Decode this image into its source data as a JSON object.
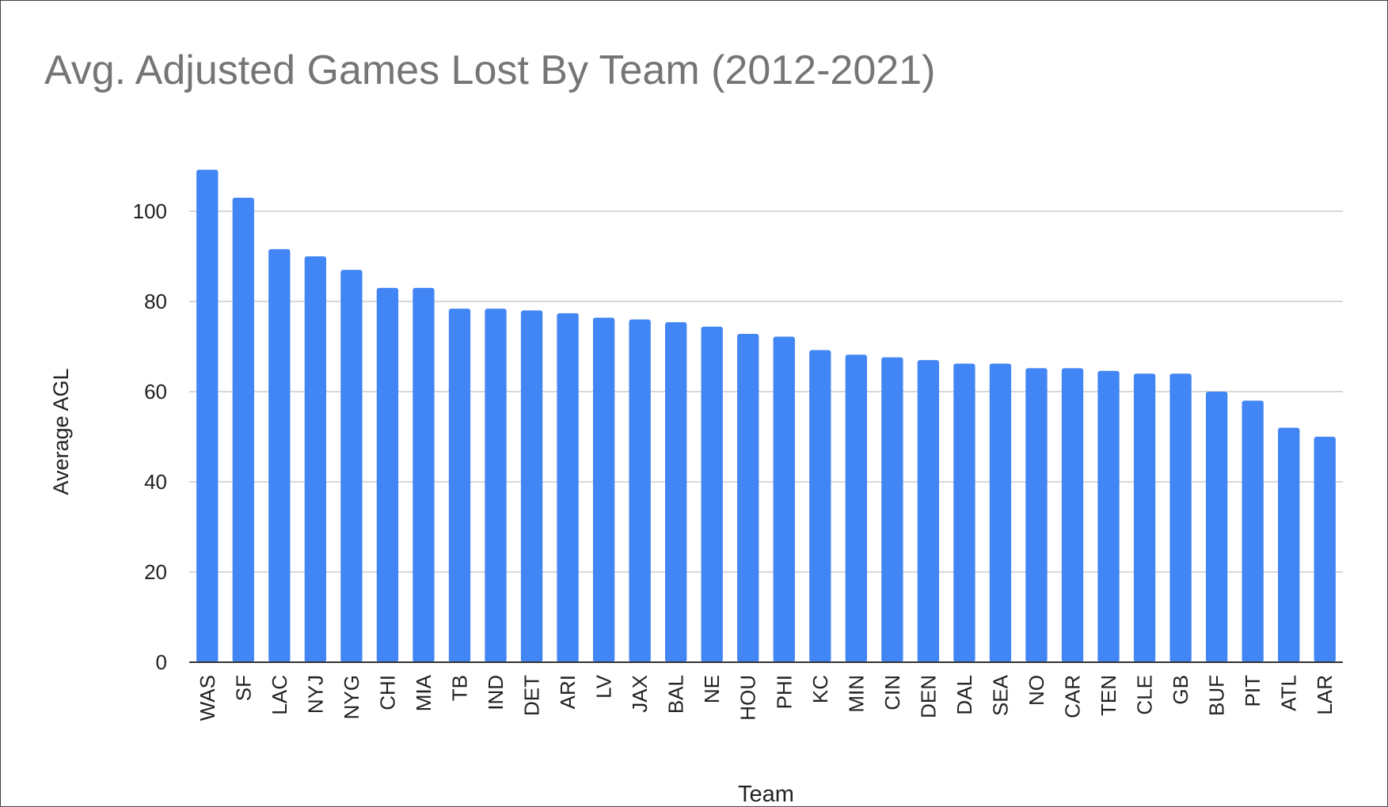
{
  "chart_data": {
    "type": "bar",
    "title": "Avg. Adjusted Games Lost By Team (2012-2021)",
    "xlabel": "Team",
    "ylabel": "Average AGL",
    "ylim": [
      0,
      110
    ],
    "yticks": [
      0,
      20,
      40,
      60,
      80,
      100
    ],
    "grid": true,
    "categories": [
      "WAS",
      "SF",
      "LAC",
      "NYJ",
      "NYG",
      "CHI",
      "MIA",
      "TB",
      "IND",
      "DET",
      "ARI",
      "LV",
      "JAX",
      "BAL",
      "NE",
      "HOU",
      "PHI",
      "KC",
      "MIN",
      "CIN",
      "DEN",
      "DAL",
      "SEA",
      "NO",
      "CAR",
      "TEN",
      "CLE",
      "GB",
      "BUF",
      "PIT",
      "ATL",
      "LAR"
    ],
    "values": [
      109.2,
      103.0,
      91.6,
      90.0,
      87.0,
      83.0,
      83.0,
      78.4,
      78.4,
      78.0,
      77.4,
      76.4,
      76.0,
      75.4,
      74.4,
      72.8,
      72.2,
      69.2,
      68.2,
      67.6,
      67.0,
      66.2,
      66.2,
      65.2,
      65.2,
      64.6,
      64.0,
      64.0,
      60.0,
      58.0,
      52.0,
      50.0
    ],
    "colors": {
      "bar": "#4285F4",
      "grid": "#cccccc",
      "axis": "#333333"
    }
  }
}
